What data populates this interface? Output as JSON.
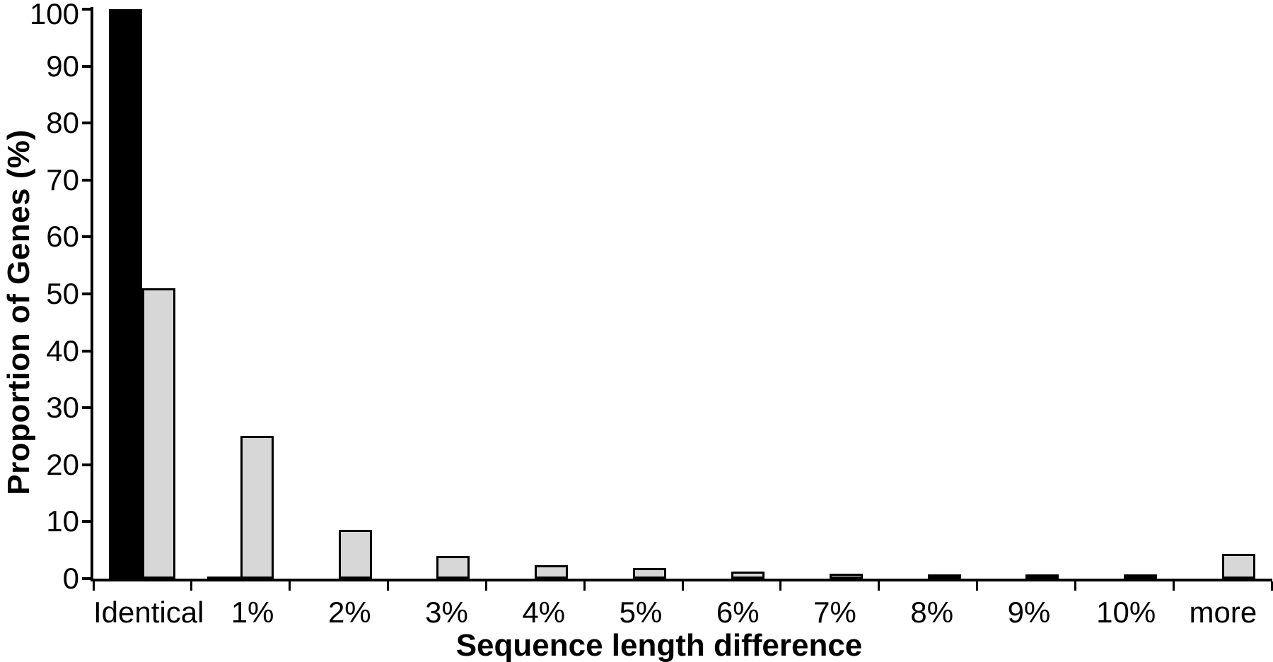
{
  "chart_data": {
    "type": "bar",
    "title": "",
    "xlabel": "Sequence length difference",
    "ylabel": "Proportion of Genes (%)",
    "categories": [
      "Identical",
      "1%",
      "2%",
      "3%",
      "4%",
      "5%",
      "6%",
      "7%",
      "8%",
      "9%",
      "10%",
      "more"
    ],
    "series": [
      {
        "id": "black-bars",
        "color": "#000000",
        "values": [
          100,
          0.4,
          0,
          0,
          0,
          0,
          0,
          0,
          0,
          0,
          0,
          0
        ]
      },
      {
        "id": "gray-bars",
        "color": "#d7d7d7",
        "values": [
          51,
          25,
          8.5,
          4,
          2.4,
          1.9,
          1.2,
          0.9,
          0.7,
          0.5,
          0.5,
          4.3
        ]
      }
    ],
    "ylim": [
      0,
      100
    ],
    "yticks": [
      0,
      10,
      20,
      30,
      40,
      50,
      60,
      70,
      80,
      90,
      100
    ],
    "grid": false,
    "legend": "none",
    "axis_color": "#000000",
    "background": "#ffffff"
  }
}
